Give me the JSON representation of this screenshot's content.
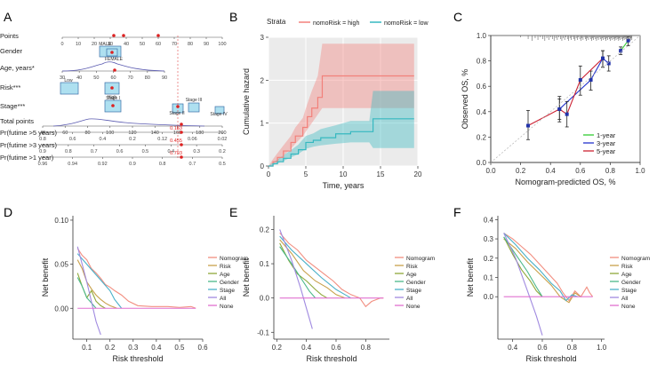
{
  "panels": {
    "A": {
      "letter": "A"
    },
    "B": {
      "letter": "B"
    },
    "C": {
      "letter": "C"
    },
    "D": {
      "letter": "D"
    },
    "E": {
      "letter": "E"
    },
    "F": {
      "letter": "F"
    }
  },
  "chart_data": [
    {
      "panel": "A",
      "type": "nomogram",
      "rows": [
        {
          "label": "Points",
          "min": 0,
          "max": 100,
          "ticks": [
            "0",
            "10",
            "20",
            "30",
            "40",
            "50",
            "60",
            "70",
            "80",
            "90",
            "100"
          ]
        },
        {
          "label": "Gender",
          "boxes": [
            "MALE",
            "FEMALE"
          ]
        },
        {
          "label": "Age, years*",
          "ticks": [
            "30",
            "40",
            "50",
            "60",
            "70",
            "80",
            "90"
          ]
        },
        {
          "label": "Risk***",
          "boxes": [
            "Low",
            "High"
          ]
        },
        {
          "label": "Stage***",
          "boxes": [
            "Stage I",
            "Stage II",
            "Stage III",
            "Stage IV"
          ]
        },
        {
          "label": "Total points",
          "min": 40,
          "max": 200,
          "ticks": [
            "40",
            "60",
            "80",
            "100",
            "120",
            "140",
            "160",
            "180",
            "200"
          ]
        },
        {
          "label": "Pr(futime >5 years)",
          "ticks": [
            "0.8",
            "0.6",
            "0.4",
            "0.2",
            "0.12",
            "0.06",
            "0.02"
          ],
          "highlight": "0.183"
        },
        {
          "label": "Pr(futime >3 years)",
          "ticks": [
            "0.9",
            "0.8",
            "0.7",
            "0.6",
            "0.5",
            "0.4",
            "0.3",
            "0.2"
          ],
          "highlight": "0.455"
        },
        {
          "label": "Pr(futime >1 year)",
          "ticks": [
            "0.96",
            "0.94",
            "0.92",
            "0.9",
            "0.8",
            "0.7",
            "0.5"
          ],
          "highlight": "0.793"
        }
      ]
    },
    {
      "panel": "B",
      "type": "line",
      "legend_title": "Strata",
      "xlabel": "Time, years",
      "ylabel": "Cumulative hazard",
      "xlim": [
        0,
        20
      ],
      "ylim": [
        0,
        3
      ],
      "xticks": [
        "0",
        "5",
        "10",
        "15",
        "20"
      ],
      "yticks": [
        "0",
        "1",
        "2",
        "3"
      ],
      "series": [
        {
          "name": "nomoRisk = high",
          "color": "#f2807a",
          "x": [
            0,
            0.6,
            1.2,
            2.0,
            3.0,
            3.6,
            4.6,
            5.2,
            5.8,
            6.6,
            7.2,
            8.5,
            10,
            13,
            16,
            19.5
          ],
          "y": [
            0,
            0.1,
            0.2,
            0.35,
            0.55,
            0.7,
            0.9,
            1.15,
            1.35,
            1.6,
            2.1,
            2.1,
            2.1,
            2.1,
            2.1,
            2.1
          ],
          "lower": [
            0,
            0.05,
            0.12,
            0.24,
            0.4,
            0.52,
            0.7,
            0.85,
            1.0,
            1.2,
            1.35,
            1.35,
            1.35,
            1.35,
            1.35,
            1.35
          ],
          "upper": [
            0,
            0.16,
            0.3,
            0.48,
            0.7,
            0.9,
            1.12,
            1.45,
            1.75,
            2.1,
            2.85,
            2.85,
            2.85,
            2.85,
            2.85,
            2.85
          ]
        },
        {
          "name": "nomoRisk = low",
          "color": "#36b8c0",
          "x": [
            0,
            0.6,
            1.2,
            2.0,
            3.0,
            4.0,
            5.0,
            6.0,
            7.0,
            9.0,
            11.0,
            13.5,
            14.0,
            17.0,
            19.5
          ],
          "y": [
            0,
            0.05,
            0.1,
            0.18,
            0.28,
            0.38,
            0.55,
            0.6,
            0.66,
            0.75,
            0.8,
            0.8,
            1.1,
            1.1,
            1.1
          ],
          "lower": [
            0,
            0.02,
            0.06,
            0.12,
            0.2,
            0.28,
            0.4,
            0.45,
            0.48,
            0.52,
            0.55,
            0.55,
            0.42,
            0.42,
            0.42
          ],
          "upper": [
            0,
            0.08,
            0.15,
            0.25,
            0.37,
            0.5,
            0.7,
            0.76,
            0.86,
            0.95,
            1.05,
            1.05,
            1.75,
            1.75,
            1.75
          ]
        }
      ]
    },
    {
      "panel": "C",
      "type": "line",
      "xlabel": "Nomogram-predicted OS, %",
      "ylabel": "Observed OS, %",
      "xlim": [
        0,
        1
      ],
      "ylim": [
        0,
        1
      ],
      "xticks": [
        "0.0",
        "0.2",
        "0.4",
        "0.6",
        "0.8",
        "1.0"
      ],
      "yticks": [
        "0.0",
        "0.2",
        "0.4",
        "0.6",
        "0.8",
        "1.0"
      ],
      "series": [
        {
          "name": "1-year",
          "color": "#33cc33",
          "x": [
            0.87,
            0.92
          ],
          "y": [
            0.88,
            0.96
          ],
          "err_low": [
            0.85,
            0.92
          ],
          "err_high": [
            0.91,
            0.99
          ]
        },
        {
          "name": "3-year",
          "color": "#2233cc",
          "x": [
            0.46,
            0.67,
            0.75,
            0.79
          ],
          "y": [
            0.42,
            0.65,
            0.82,
            0.78
          ],
          "err_low": [
            0.34,
            0.57,
            0.75,
            0.72
          ],
          "err_high": [
            0.5,
            0.72,
            0.88,
            0.84
          ]
        },
        {
          "name": "5-year",
          "color": "#cc2233",
          "x": [
            0.25,
            0.46,
            0.51,
            0.6,
            0.75
          ],
          "y": [
            0.29,
            0.42,
            0.38,
            0.65,
            0.82
          ],
          "err_low": [
            0.18,
            0.32,
            0.28,
            0.53,
            0.75
          ],
          "err_high": [
            0.41,
            0.52,
            0.48,
            0.76,
            0.88
          ]
        }
      ]
    },
    {
      "panel": "D",
      "type": "line",
      "xlabel": "Risk threshold",
      "ylabel": "Net benefit",
      "xlim": [
        0.04,
        0.6
      ],
      "ylim": [
        -0.035,
        0.105
      ],
      "xticks": [
        {
          "v": 0.1,
          "t": "0.1"
        },
        {
          "v": 0.2,
          "t": "0.2"
        },
        {
          "v": 0.3,
          "t": "0.3"
        },
        {
          "v": 0.4,
          "t": "0.4"
        },
        {
          "v": 0.5,
          "t": "0.5"
        },
        {
          "v": 0.6,
          "t": "0.6"
        }
      ],
      "yticks": [
        {
          "v": 0.0,
          "t": "0.00"
        },
        {
          "v": 0.05,
          "t": "0.05"
        },
        {
          "v": 0.1,
          "t": "0.10"
        }
      ],
      "legend": [
        "Nomogram",
        "Risk",
        "Age",
        "Gender",
        "Stage",
        "All",
        "None"
      ],
      "series": [
        {
          "name": "Nomogram",
          "color": "#f28e80",
          "x": [
            0.06,
            0.08,
            0.1,
            0.12,
            0.14,
            0.16,
            0.18,
            0.2,
            0.22,
            0.25,
            0.28,
            0.32,
            0.38,
            0.45,
            0.5,
            0.55,
            0.57
          ],
          "y": [
            0.068,
            0.06,
            0.055,
            0.045,
            0.04,
            0.034,
            0.027,
            0.024,
            0.02,
            0.015,
            0.008,
            0.003,
            0.002,
            0.002,
            0.001,
            0.002,
            0.0
          ]
        },
        {
          "name": "Risk",
          "color": "#c8a04a",
          "x": [
            0.06,
            0.08,
            0.1,
            0.12,
            0.14,
            0.16,
            0.18,
            0.2,
            0.23
          ],
          "y": [
            0.055,
            0.045,
            0.03,
            0.022,
            0.015,
            0.01,
            0.006,
            0.003,
            0.0
          ]
        },
        {
          "name": "Age",
          "color": "#8fa83a",
          "x": [
            0.06,
            0.08,
            0.1,
            0.12,
            0.14,
            0.16,
            0.18
          ],
          "y": [
            0.04,
            0.025,
            0.012,
            0.02,
            0.008,
            0.003,
            0.0
          ]
        },
        {
          "name": "Gender",
          "color": "#4cb88a",
          "x": [
            0.06,
            0.08,
            0.1,
            0.12,
            0.14
          ],
          "y": [
            0.035,
            0.025,
            0.012,
            0.006,
            0.0
          ]
        },
        {
          "name": "Stage",
          "color": "#4ab0c8",
          "x": [
            0.06,
            0.1,
            0.15,
            0.2,
            0.22,
            0.25
          ],
          "y": [
            0.062,
            0.05,
            0.035,
            0.02,
            0.01,
            0.0
          ]
        },
        {
          "name": "All",
          "color": "#a08ae0",
          "x": [
            0.06,
            0.1,
            0.14,
            0.16
          ],
          "y": [
            0.07,
            0.03,
            -0.015,
            -0.03
          ]
        },
        {
          "name": "None",
          "color": "#e070d0",
          "x": [
            0.06,
            0.57
          ],
          "y": [
            0.0,
            0.0
          ]
        }
      ]
    },
    {
      "panel": "E",
      "type": "line",
      "xlabel": "Risk threshold",
      "ylabel": "Net benefit",
      "xlim": [
        0.18,
        0.96
      ],
      "ylim": [
        -0.12,
        0.24
      ],
      "xticks": [
        {
          "v": 0.2,
          "t": "0.2"
        },
        {
          "v": 0.4,
          "t": "0.4"
        },
        {
          "v": 0.6,
          "t": "0.6"
        },
        {
          "v": 0.8,
          "t": "0.8"
        }
      ],
      "yticks": [
        {
          "v": -0.1,
          "t": "-0.1"
        },
        {
          "v": 0.0,
          "t": "0.0"
        },
        {
          "v": 0.1,
          "t": "0.1"
        },
        {
          "v": 0.2,
          "t": "0.2"
        }
      ],
      "legend": [
        "Nomogram",
        "Risk",
        "Age",
        "Gender",
        "Stage",
        "All",
        "None"
      ],
      "series": [
        {
          "name": "Nomogram",
          "color": "#f28e80",
          "x": [
            0.22,
            0.28,
            0.34,
            0.4,
            0.46,
            0.52,
            0.58,
            0.64,
            0.7,
            0.76,
            0.8,
            0.84,
            0.9,
            0.92
          ],
          "y": [
            0.19,
            0.16,
            0.14,
            0.11,
            0.09,
            0.07,
            0.05,
            0.025,
            0.01,
            0.0,
            -0.025,
            -0.01,
            0.0,
            0.0
          ]
        },
        {
          "name": "Risk",
          "color": "#c8a04a",
          "x": [
            0.22,
            0.3,
            0.38,
            0.46,
            0.54,
            0.6,
            0.66
          ],
          "y": [
            0.17,
            0.13,
            0.08,
            0.05,
            0.03,
            0.01,
            0.0
          ]
        },
        {
          "name": "Age",
          "color": "#8fa83a",
          "x": [
            0.22,
            0.28,
            0.34,
            0.4,
            0.46,
            0.5,
            0.54
          ],
          "y": [
            0.16,
            0.11,
            0.07,
            0.05,
            0.025,
            0.01,
            0.0
          ]
        },
        {
          "name": "Gender",
          "color": "#4cb88a",
          "x": [
            0.22,
            0.3,
            0.36,
            0.42,
            0.46
          ],
          "y": [
            0.15,
            0.1,
            0.06,
            0.02,
            0.0
          ]
        },
        {
          "name": "Stage",
          "color": "#4ab0c8",
          "x": [
            0.22,
            0.3,
            0.4,
            0.5,
            0.6,
            0.66,
            0.7
          ],
          "y": [
            0.18,
            0.14,
            0.1,
            0.06,
            0.025,
            0.01,
            0.0
          ]
        },
        {
          "name": "All",
          "color": "#a08ae0",
          "x": [
            0.22,
            0.3,
            0.36,
            0.42,
            0.44
          ],
          "y": [
            0.2,
            0.11,
            0.03,
            -0.06,
            -0.09
          ]
        },
        {
          "name": "None",
          "color": "#e070d0",
          "x": [
            0.22,
            0.92
          ],
          "y": [
            0.0,
            0.0
          ]
        }
      ]
    },
    {
      "panel": "F",
      "type": "line",
      "xlabel": "Risk threshold",
      "ylabel": "Net benefit",
      "xlim": [
        0.3,
        1.02
      ],
      "ylim": [
        -0.22,
        0.42
      ],
      "xticks": [
        {
          "v": 0.4,
          "t": "0.4"
        },
        {
          "v": 0.6,
          "t": "0.6"
        },
        {
          "v": 0.8,
          "t": "0.8"
        },
        {
          "v": 1.0,
          "t": "1.0"
        }
      ],
      "yticks": [
        {
          "v": 0.0,
          "t": "0.0"
        },
        {
          "v": 0.1,
          "t": "0.1"
        },
        {
          "v": 0.2,
          "t": "0.2"
        },
        {
          "v": 0.3,
          "t": "0.3"
        },
        {
          "v": 0.4,
          "t": "0.4"
        }
      ],
      "legend": [
        "Nomogram",
        "Risk",
        "Age",
        "Gender",
        "Stage",
        "All",
        "None"
      ],
      "series": [
        {
          "name": "Nomogram",
          "color": "#f28e80",
          "x": [
            0.34,
            0.4,
            0.46,
            0.52,
            0.58,
            0.64,
            0.7,
            0.74,
            0.78,
            0.82,
            0.86,
            0.9,
            0.92,
            0.94
          ],
          "y": [
            0.33,
            0.3,
            0.26,
            0.22,
            0.17,
            0.12,
            0.07,
            0.02,
            -0.02,
            0.03,
            0.0,
            0.05,
            0.02,
            0.0
          ]
        },
        {
          "name": "Risk",
          "color": "#c8a04a",
          "x": [
            0.34,
            0.42,
            0.5,
            0.58,
            0.66,
            0.72,
            0.78,
            0.82,
            0.86
          ],
          "y": [
            0.3,
            0.25,
            0.18,
            0.12,
            0.06,
            0.0,
            -0.03,
            0.02,
            0.0
          ]
        },
        {
          "name": "Age",
          "color": "#8fa83a",
          "x": [
            0.34,
            0.4,
            0.46,
            0.52,
            0.56,
            0.6
          ],
          "y": [
            0.31,
            0.22,
            0.14,
            0.08,
            0.03,
            0.0
          ]
        },
        {
          "name": "Gender",
          "color": "#4cb88a",
          "x": [
            0.34,
            0.42,
            0.5,
            0.56,
            0.6
          ],
          "y": [
            0.31,
            0.22,
            0.13,
            0.05,
            0.0
          ]
        },
        {
          "name": "Stage",
          "color": "#4ab0c8",
          "x": [
            0.34,
            0.42,
            0.5,
            0.58,
            0.66,
            0.72,
            0.76,
            0.8,
            0.84
          ],
          "y": [
            0.33,
            0.27,
            0.2,
            0.14,
            0.07,
            0.03,
            -0.02,
            0.01,
            0.0
          ]
        },
        {
          "name": "All",
          "color": "#a08ae0",
          "x": [
            0.34,
            0.42,
            0.5,
            0.56,
            0.6
          ],
          "y": [
            0.33,
            0.2,
            0.03,
            -0.1,
            -0.2
          ]
        },
        {
          "name": "None",
          "color": "#e070d0",
          "x": [
            0.34,
            0.94
          ],
          "y": [
            0.0,
            0.0
          ]
        }
      ]
    }
  ]
}
